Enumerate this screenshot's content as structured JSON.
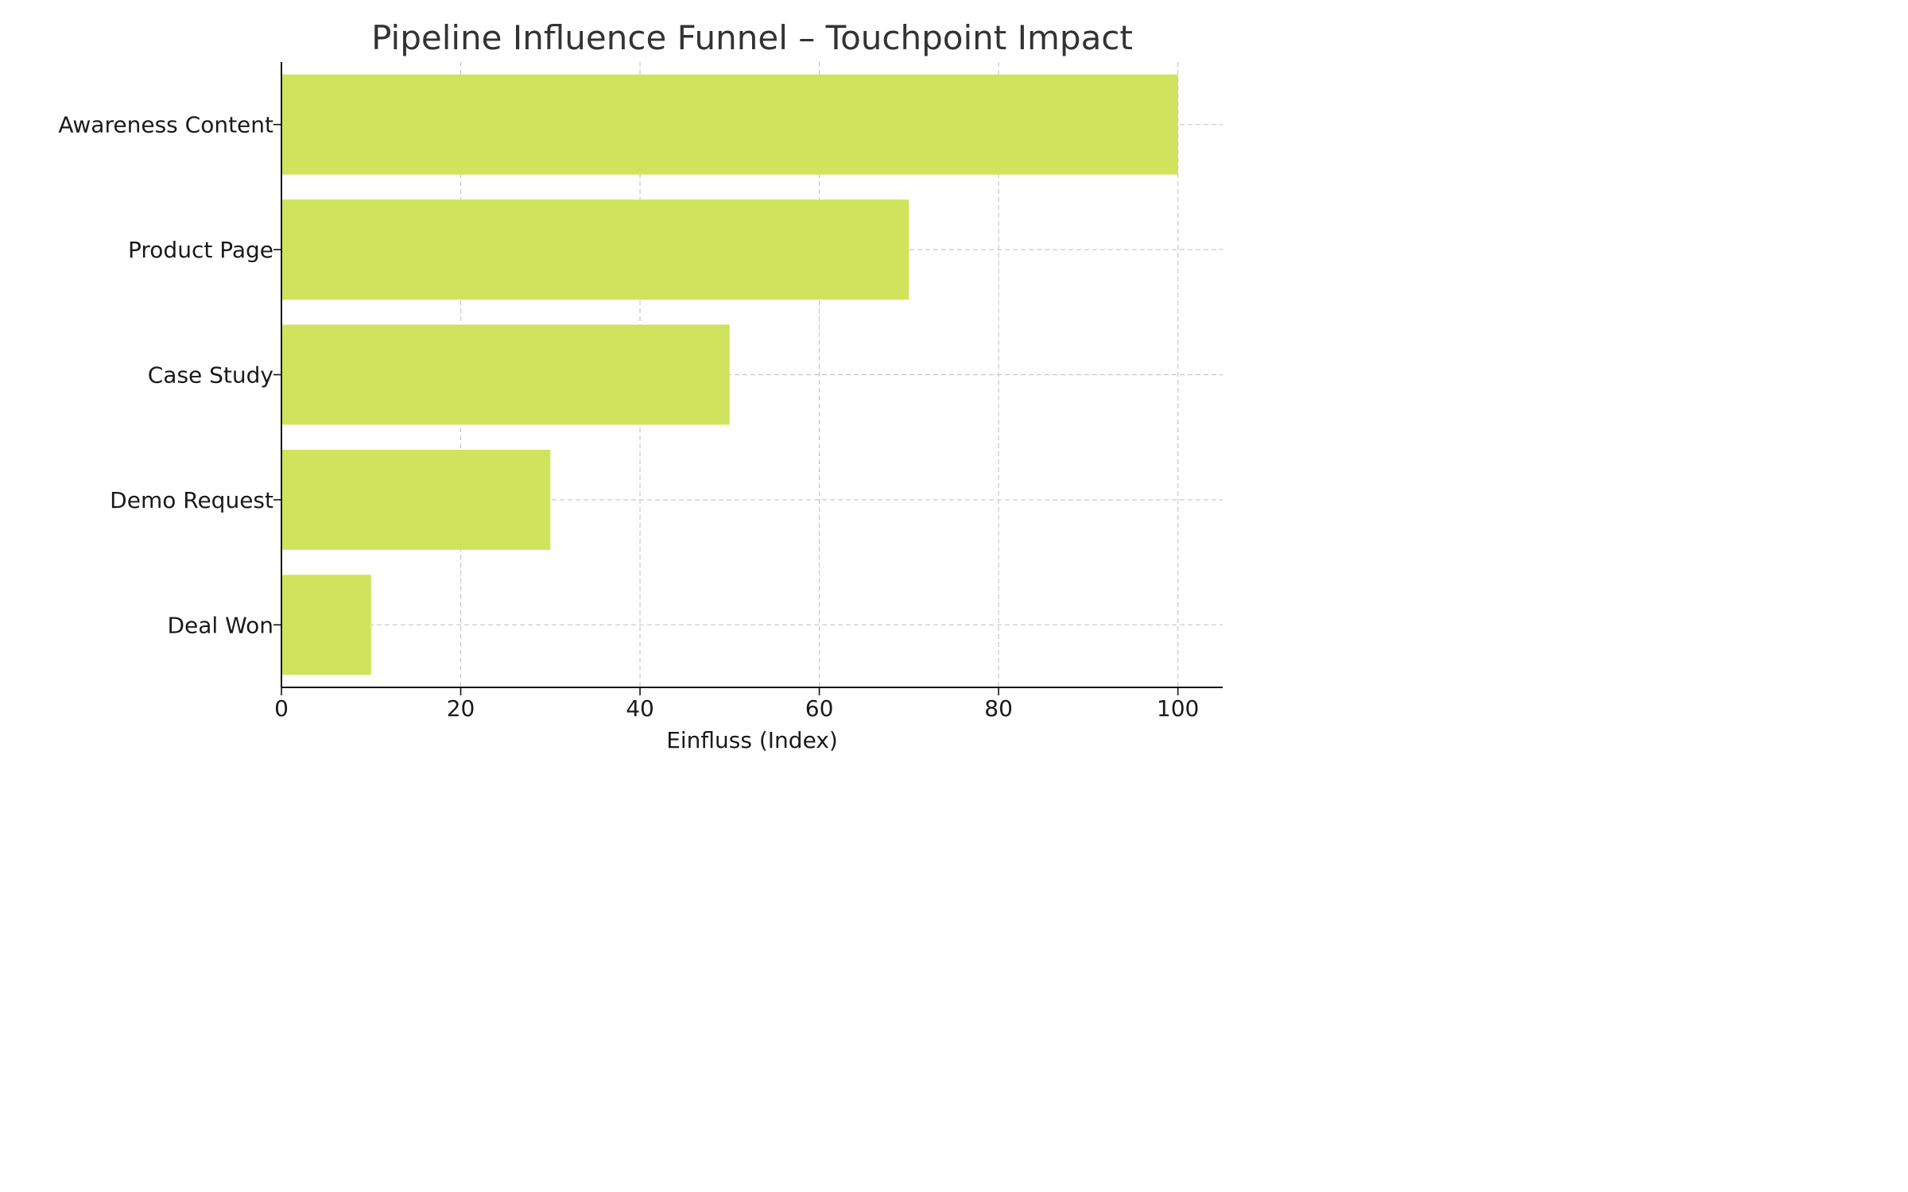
{
  "chart_data": {
    "type": "bar",
    "orientation": "horizontal",
    "title": "Pipeline Influence Funnel – Touchpoint Impact",
    "xlabel": "Einfluss (Index)",
    "ylabel": "",
    "categories": [
      "Awareness Content",
      "Product Page",
      "Case Study",
      "Demo Request",
      "Deal Won"
    ],
    "values": [
      100,
      70,
      50,
      30,
      10
    ],
    "xlim": [
      0,
      105
    ],
    "xticks": [
      0,
      20,
      40,
      60,
      80,
      100
    ],
    "xtick_labels": [
      "0",
      "20",
      "40",
      "60",
      "80",
      "100"
    ],
    "grid": true,
    "bar_color": "#d0e35c"
  }
}
